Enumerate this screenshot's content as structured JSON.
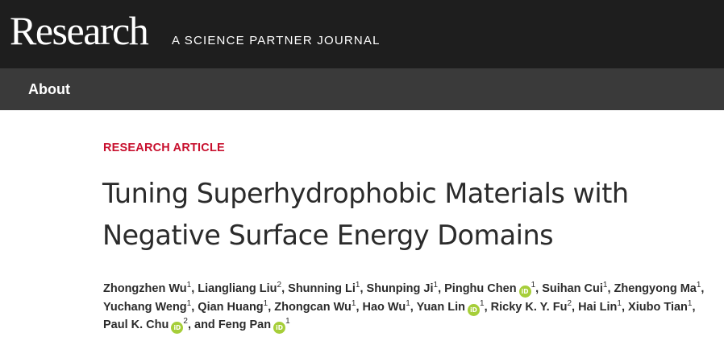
{
  "header": {
    "brand": "Research",
    "tagline": "A SCIENCE PARTNER JOURNAL"
  },
  "nav": {
    "about": "About"
  },
  "article": {
    "type": "RESEARCH ARTICLE",
    "title_line1": "Tuning Superhydrophobic Materials with",
    "title_line2": "Negative Surface Energy Domains",
    "orcid_label": "iD",
    "and_text": "and",
    "authors": [
      {
        "name": "Zhongzhen Wu",
        "aff": "1",
        "orcid": false
      },
      {
        "name": "Liangliang Liu",
        "aff": "2",
        "orcid": false
      },
      {
        "name": "Shunning Li",
        "aff": "1",
        "orcid": false
      },
      {
        "name": "Shunping Ji",
        "aff": "1",
        "orcid": false
      },
      {
        "name": "Pinghu Chen",
        "aff": "1",
        "orcid": true
      },
      {
        "name": "Suihan Cui",
        "aff": "1",
        "orcid": false
      },
      {
        "name": "Zhengyong Ma",
        "aff": "1",
        "orcid": false
      },
      {
        "name": "Yuchang Weng",
        "aff": "1",
        "orcid": false
      },
      {
        "name": "Qian Huang",
        "aff": "1",
        "orcid": false
      },
      {
        "name": "Zhongcan Wu",
        "aff": "1",
        "orcid": false
      },
      {
        "name": "Hao Wu",
        "aff": "1",
        "orcid": false
      },
      {
        "name": "Yuan Lin",
        "aff": "1",
        "orcid": true
      },
      {
        "name": "Ricky K. Y. Fu",
        "aff": "2",
        "orcid": false
      },
      {
        "name": "Hai Lin",
        "aff": "1",
        "orcid": false
      },
      {
        "name": "Xiubo Tian",
        "aff": "1",
        "orcid": false
      },
      {
        "name": "Paul K. Chu",
        "aff": "2",
        "orcid": true
      },
      {
        "name": "Feng Pan",
        "aff": "1",
        "orcid": true
      }
    ]
  },
  "colors": {
    "topbar": "#1e1e1e",
    "navbar": "#3a3a3a",
    "kicker": "#c8102e",
    "orcid": "#a6ce39"
  }
}
